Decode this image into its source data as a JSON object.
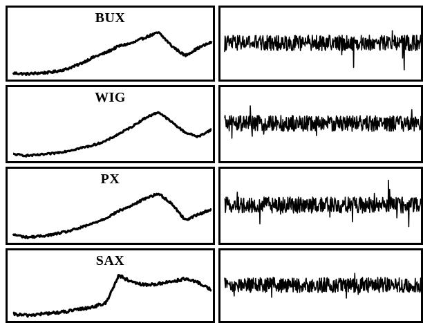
{
  "colors": {
    "line": "#000000",
    "background": "#ffffff"
  },
  "chart_data": [
    {
      "type": "line",
      "title": "BUX",
      "series": [
        {
          "values": [
            1.0,
            0.95,
            1.0,
            1.05,
            1.2,
            1.45,
            1.8,
            2.05,
            2.4,
            2.55,
            2.85,
            3.1,
            2.4,
            1.9,
            2.3,
            2.6
          ]
        }
      ]
    },
    {
      "type": "line",
      "title": "",
      "series": [
        {
          "values": [
            0.1,
            -0.5,
            0.3,
            0.6,
            -1.4,
            0.5,
            -0.3,
            0.2,
            -0.9,
            0.4,
            0.1,
            -0.2,
            0.3,
            -0.6,
            0.5,
            0.2,
            -0.4,
            0.3,
            0.1,
            -0.5,
            0.4,
            -0.2,
            0.6,
            -0.3,
            0.2,
            2.9,
            -2.5,
            0.8,
            -0.4,
            0.3
          ]
        }
      ]
    },
    {
      "type": "line",
      "title": "WIG",
      "series": [
        {
          "values": [
            1.0,
            0.9,
            0.95,
            1.05,
            1.2,
            1.4,
            1.6,
            1.9,
            2.4,
            2.9,
            3.5,
            3.9,
            3.2,
            2.5,
            2.2,
            2.7
          ]
        }
      ]
    },
    {
      "type": "line",
      "title": "",
      "series": [
        {
          "values": [
            0.2,
            -0.8,
            0.5,
            -0.3,
            -1.5,
            0.7,
            -0.2,
            0.4,
            -0.6,
            0.3,
            -0.1,
            0.2,
            -0.4,
            0.5,
            -0.3,
            0.1,
            0.6,
            -0.9,
            0.3,
            -0.2,
            0.5,
            -0.7,
            0.4,
            0.9,
            -0.3,
            0.2,
            -1.2,
            0.6,
            1.1,
            -0.4
          ]
        }
      ]
    },
    {
      "type": "line",
      "title": "PX",
      "series": [
        {
          "values": [
            1.0,
            0.85,
            0.9,
            1.0,
            1.15,
            1.35,
            1.6,
            1.9,
            2.3,
            2.6,
            3.0,
            3.25,
            2.7,
            1.8,
            2.1,
            2.4
          ]
        }
      ]
    },
    {
      "type": "line",
      "title": "",
      "series": [
        {
          "values": [
            0.1,
            -0.4,
            0.3,
            -0.6,
            0.5,
            -0.2,
            0.3,
            -0.5,
            0.2,
            -0.3,
            0.4,
            -0.1,
            0.2,
            -0.6,
            0.3,
            0.1,
            -0.4,
            0.5,
            -0.2,
            1.4,
            -0.7,
            0.3,
            -0.5,
            0.6,
            2.5,
            -1.6,
            0.4,
            -2.8,
            0.9,
            0.2
          ]
        }
      ]
    },
    {
      "type": "line",
      "title": "SAX",
      "series": [
        {
          "values": [
            1.0,
            0.95,
            1.0,
            1.05,
            1.1,
            1.2,
            1.3,
            1.45,
            2.6,
            2.3,
            2.2,
            2.25,
            2.35,
            2.45,
            2.3,
            2.0
          ]
        }
      ]
    },
    {
      "type": "line",
      "title": "",
      "series": [
        {
          "values": [
            0.3,
            -0.9,
            0.6,
            -0.4,
            1.0,
            -0.7,
            0.5,
            -1.6,
            0.8,
            -0.3,
            0.4,
            -0.5,
            0.6,
            -0.2,
            0.3,
            -1.0,
            0.5,
            -0.4,
            0.7,
            -0.6,
            0.3,
            -0.5,
            0.8,
            -0.3,
            0.4,
            -0.7,
            0.5,
            1.2,
            -1.5,
            0.6
          ]
        }
      ]
    }
  ]
}
